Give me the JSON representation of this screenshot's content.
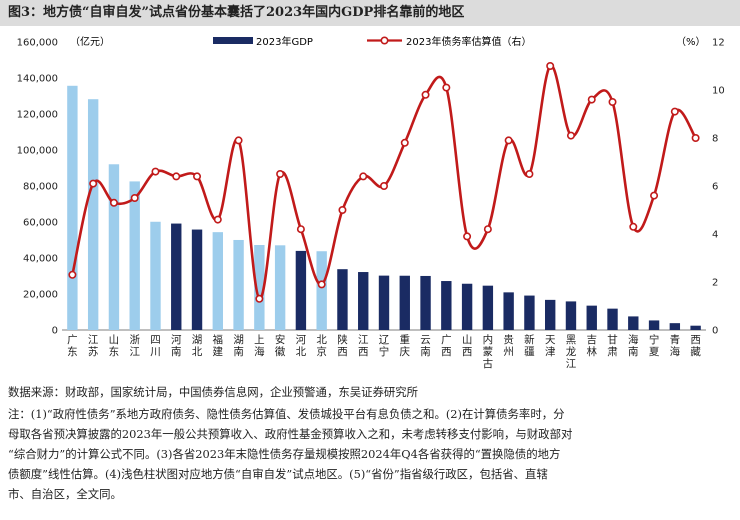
{
  "figure": {
    "title": "图3：地方债“自审自发”试点省份基本囊括了2023年国内GDP排名靠前的地区"
  },
  "chart_data": {
    "type": "bar+line",
    "left_axis": {
      "unit_label": "（亿元）",
      "min": 0,
      "max": 160000,
      "step": 20000,
      "tick_labels": [
        "0",
        "20,000",
        "40,000",
        "60,000",
        "80,000",
        "100,000",
        "120,000",
        "140,000",
        "160,000"
      ]
    },
    "right_axis": {
      "unit_label": "（%）",
      "min": 0,
      "max": 12,
      "step": 2,
      "tick_labels": [
        "0",
        "2",
        "4",
        "6",
        "8",
        "10",
        "12"
      ]
    },
    "legend": {
      "placement": "top",
      "bar_label": "2023年GDP",
      "line_label": "2023年债务率估算值（右）"
    },
    "categories": [
      [
        "广",
        "东"
      ],
      [
        "江",
        "苏"
      ],
      [
        "山",
        "东"
      ],
      [
        "浙",
        "江"
      ],
      [
        "四",
        "川"
      ],
      [
        "河",
        "南"
      ],
      [
        "湖",
        "北"
      ],
      [
        "福",
        "建"
      ],
      [
        "湖",
        "南"
      ],
      [
        "上",
        "海"
      ],
      [
        "安",
        "徽"
      ],
      [
        "河",
        "北"
      ],
      [
        "北",
        "京"
      ],
      [
        "陕",
        "西"
      ],
      [
        "江",
        "西"
      ],
      [
        "辽",
        "宁"
      ],
      [
        "重",
        "庆"
      ],
      [
        "云",
        "南"
      ],
      [
        "广",
        "西"
      ],
      [
        "山",
        "西"
      ],
      [
        "内",
        "蒙",
        "古"
      ],
      [
        "贵",
        "州"
      ],
      [
        "新",
        "疆"
      ],
      [
        "天",
        "津"
      ],
      [
        "黑",
        "龙",
        "江"
      ],
      [
        "吉",
        "林"
      ],
      [
        "甘",
        "肃"
      ],
      [
        "海",
        "南"
      ],
      [
        "宁",
        "夏"
      ],
      [
        "青",
        "海"
      ],
      [
        "西",
        "藏"
      ]
    ],
    "gdp": [
      135673,
      128222,
      92069,
      82553,
      60133,
      59132,
      55804,
      54355,
      50013,
      47219,
      47051,
      43944,
      43761,
      33786,
      32200,
      30209,
      30146,
      30021,
      27202,
      25698,
      24627,
      20913,
      19126,
      16737,
      15884,
      13531,
      11864,
      7551,
      5315,
      3799,
      2393
    ],
    "pilot": [
      true,
      true,
      true,
      true,
      true,
      false,
      false,
      true,
      true,
      true,
      true,
      false,
      true,
      false,
      false,
      false,
      false,
      false,
      false,
      false,
      false,
      false,
      false,
      false,
      false,
      false,
      false,
      false,
      false,
      false,
      false
    ],
    "debt_ratio": [
      2.3,
      6.1,
      5.3,
      5.5,
      6.6,
      6.4,
      6.4,
      4.6,
      7.9,
      1.3,
      6.5,
      4.2,
      1.9,
      5.0,
      6.4,
      6.0,
      7.8,
      9.8,
      10.1,
      3.9,
      4.2,
      7.9,
      6.5,
      11.0,
      8.1,
      9.6,
      9.5,
      4.3,
      5.6,
      9.1,
      8.0
    ],
    "colors": {
      "pilot_bar": "#9dcdec",
      "other_bar": "#1a2b63",
      "line": "#c11a1a"
    }
  },
  "footer": {
    "source": "数据来源：财政部，国家统计局，中国债券信息网，企业预警通，东吴证券研究所",
    "notes": [
      "注：(1)“政府性债务”系地方政府债务、隐性债务估算值、发债城投平台有息负债之和。(2)在计算债务率时，分",
      "母取各省预决算披露的2023年一般公共预算收入、政府性基金预算收入之和，未考虑转移支付影响，与财政部对",
      "“综合财力”的计算公式不同。(3)各省2023年末隐性债务存量规模按照2024年Q4各省获得的“置换隐债的地方",
      "债额度”线性估算。(4)浅色柱状图对应地方债“自审自发”试点地区。(5)“省份”指省级行政区，包括省、直辖",
      "市、自治区，全文同。"
    ]
  }
}
